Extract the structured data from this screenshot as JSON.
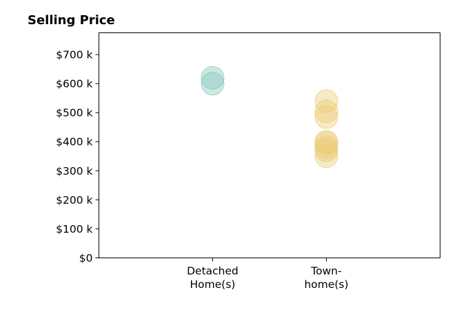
{
  "chart_data": {
    "type": "scatter",
    "title": "Selling Price",
    "xlabel": "",
    "ylabel": "",
    "categories": [
      {
        "id": "detached",
        "label_lines": [
          "Detached",
          "Home(s)"
        ]
      },
      {
        "id": "townhomes",
        "label_lines": [
          "Town-",
          "home(s)"
        ]
      }
    ],
    "xlim": [
      -1,
      2
    ],
    "ylim": [
      0,
      775000
    ],
    "y_ticks": [
      {
        "value": 0,
        "label": "$0"
      },
      {
        "value": 100000,
        "label": "$100 k"
      },
      {
        "value": 200000,
        "label": "$200 k"
      },
      {
        "value": 300000,
        "label": "$300 k"
      },
      {
        "value": 400000,
        "label": "$400 k"
      },
      {
        "value": 500000,
        "label": "$500 k"
      },
      {
        "value": 600000,
        "label": "$600 k"
      },
      {
        "value": 700000,
        "label": "$700 k"
      }
    ],
    "grid": false,
    "legend": "none",
    "series": [
      {
        "category": "detached",
        "color": "#7fc6b8",
        "values": [
          620000,
          600000
        ]
      },
      {
        "category": "townhomes",
        "color": "#eccb74",
        "values": [
          540000,
          505000,
          485000,
          400000,
          395000,
          380000,
          370000,
          350000
        ]
      }
    ]
  }
}
